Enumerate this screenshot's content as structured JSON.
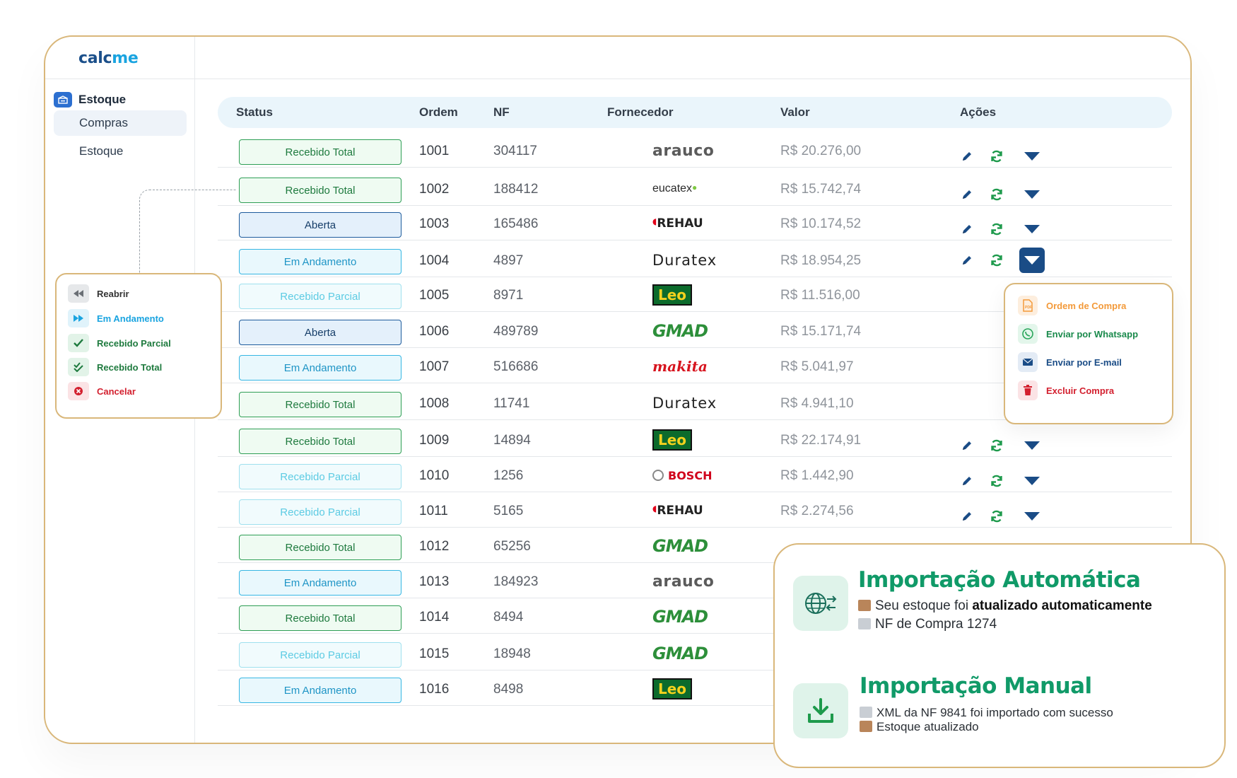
{
  "brand": {
    "part1": "calc",
    "part2": "me"
  },
  "sidebar": {
    "section": "Estoque",
    "items": [
      {
        "label": "Compras",
        "active": true
      },
      {
        "label": "Estoque",
        "active": false
      }
    ]
  },
  "table": {
    "headers": {
      "status": "Status",
      "ordem": "Ordem",
      "nf": "NF",
      "fornecedor": "Fornecedor",
      "valor": "Valor",
      "acoes": "Ações"
    },
    "rows": [
      {
        "status": "Recebido Total",
        "kind": "total",
        "ordem": "1001",
        "nf": "304117",
        "fornecedor": "arauco",
        "valor": "R$ 20.276,00",
        "actions": true
      },
      {
        "status": "Recebido Total",
        "kind": "total",
        "ordem": "1002",
        "nf": "188412",
        "fornecedor": "eucatex",
        "valor": "R$ 15.742,74",
        "actions": true
      },
      {
        "status": "Aberta",
        "kind": "aberta",
        "ordem": "1003",
        "nf": "165486",
        "fornecedor": "REHAU",
        "valor": "R$ 10.174,52",
        "actions": true
      },
      {
        "status": "Em Andamento",
        "kind": "andamento",
        "ordem": "1004",
        "nf": "4897",
        "fornecedor": "Duratex",
        "valor": "R$ 18.954,25",
        "actions": true,
        "menu_open": true
      },
      {
        "status": "Recebido Parcial",
        "kind": "parcial",
        "ordem": "1005",
        "nf": "8971",
        "fornecedor": "Leo",
        "valor": "R$ 11.516,00",
        "actions": false
      },
      {
        "status": "Aberta",
        "kind": "aberta",
        "ordem": "1006",
        "nf": "489789",
        "fornecedor": "GMAD",
        "valor": "R$ 15.171,74",
        "actions": false
      },
      {
        "status": "Em Andamento",
        "kind": "andamento",
        "ordem": "1007",
        "nf": "516686",
        "fornecedor": "makita",
        "valor": "R$ 5.041,97",
        "actions": false
      },
      {
        "status": "Recebido Total",
        "kind": "total",
        "ordem": "1008",
        "nf": "11741",
        "fornecedor": "Duratex",
        "valor": "R$ 4.941,10",
        "actions": false
      },
      {
        "status": "Recebido Total",
        "kind": "total",
        "ordem": "1009",
        "nf": "14894",
        "fornecedor": "Leo",
        "valor": "R$ 22.174,91",
        "actions": true
      },
      {
        "status": "Recebido Parcial",
        "kind": "parcial",
        "ordem": "1010",
        "nf": "1256",
        "fornecedor": "BOSCH",
        "valor": "R$ 1.442,90",
        "actions": true
      },
      {
        "status": "Recebido Parcial",
        "kind": "parcial",
        "ordem": "1011",
        "nf": "5165",
        "fornecedor": "REHAU",
        "valor": "R$ 2.274,56",
        "actions": true
      },
      {
        "status": "Recebido Total",
        "kind": "total",
        "ordem": "1012",
        "nf": "65256",
        "fornecedor": "GMAD",
        "valor": "",
        "actions": false
      },
      {
        "status": "Em Andamento",
        "kind": "andamento",
        "ordem": "1013",
        "nf": "184923",
        "fornecedor": "arauco",
        "valor": "",
        "actions": false
      },
      {
        "status": "Recebido Total",
        "kind": "total",
        "ordem": "1014",
        "nf": "8494",
        "fornecedor": "GMAD",
        "valor": "",
        "actions": false
      },
      {
        "status": "Recebido Parcial",
        "kind": "parcial",
        "ordem": "1015",
        "nf": "18948",
        "fornecedor": "GMAD",
        "valor": "",
        "actions": false
      },
      {
        "status": "Em Andamento",
        "kind": "andamento",
        "ordem": "1016",
        "nf": "8498",
        "fornecedor": "Leo",
        "valor": "",
        "actions": false
      }
    ]
  },
  "actions_menu": {
    "items": [
      {
        "label": "Ordem de Compra",
        "icon": "pdf-doc-icon",
        "color": "#f39a3a"
      },
      {
        "label": "Enviar por Whatsapp",
        "icon": "whatsapp-icon",
        "color": "#1a8a4c"
      },
      {
        "label": "Enviar por E-mail",
        "icon": "mail-icon",
        "color": "#1a4c86"
      },
      {
        "label": "Excluir Compra",
        "icon": "trash-icon",
        "color": "#d3202f"
      }
    ]
  },
  "status_menu": {
    "items": [
      {
        "label": "Reabrir",
        "icon": "rewind-icon",
        "color": "#333333"
      },
      {
        "label": "Em Andamento",
        "icon": "fast-forward-icon",
        "color": "#1aa4e0"
      },
      {
        "label": "Recebido Parcial",
        "icon": "check-icon",
        "color": "#1e7a3e"
      },
      {
        "label": "Recebido Total",
        "icon": "double-check-icon",
        "color": "#1e7a3e"
      },
      {
        "label": "Cancelar",
        "icon": "cancel-icon",
        "color": "#d3202f"
      }
    ]
  },
  "import_card": {
    "auto": {
      "title": "Importação Automática",
      "line1_prefix": "Seu estoque foi ",
      "line1_bold": "atualizado automaticamente",
      "line2": "NF de Compra 1274"
    },
    "manual": {
      "title": "Importação Manual",
      "line1": "XML da NF 9841 foi importado com sucesso",
      "line2": "Estoque atualizado"
    }
  },
  "colors": {
    "accent_border": "#d9b77a",
    "brand_dark": "#1b4f8a",
    "brand_light": "#1aa4e0",
    "import_green": "#109a68"
  }
}
